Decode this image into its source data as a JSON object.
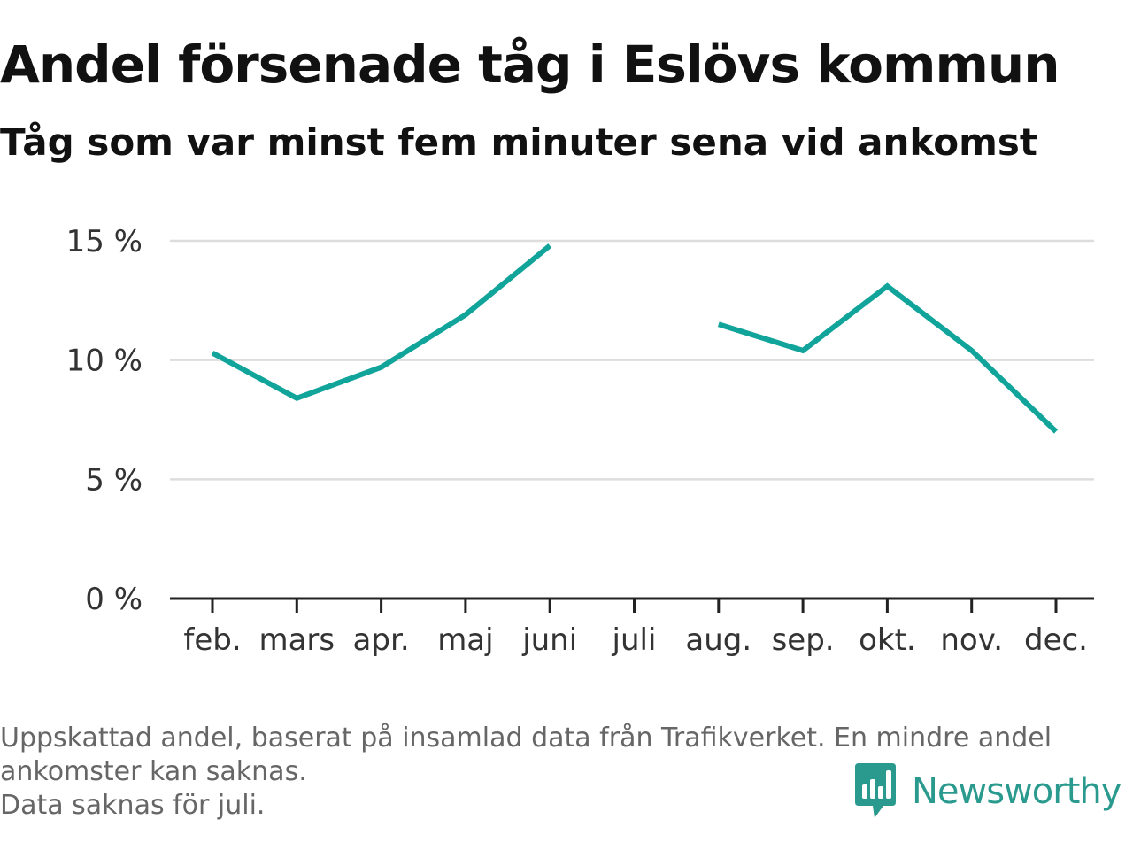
{
  "title": "Andel försenade tåg i Eslövs kommun",
  "subtitle": "Tåg som var minst fem minuter sena vid ankomst",
  "footnote": {
    "line1": "Uppskattad andel, baserat på insamlad data från Trafikverket. En mindre andel",
    "line2": "ankomster kan saknas.",
    "line3": "Data saknas för juli."
  },
  "brand": {
    "name": "Newsworthy",
    "icon": "newsworthy-logo-icon"
  },
  "colors": {
    "line": "#10a49a",
    "grid": "#dddddd",
    "axis": "#222222",
    "brand": "#2b9a8e"
  },
  "chart_data": {
    "type": "line",
    "title": "Andel försenade tåg i Eslövs kommun",
    "subtitle": "Tåg som var minst fem minuter sena vid ankomst",
    "categories": [
      "feb.",
      "mars",
      "apr.",
      "maj",
      "juni",
      "juli",
      "aug.",
      "sep.",
      "okt.",
      "nov.",
      "dec."
    ],
    "series": [
      {
        "values": [
          10.3,
          8.4,
          9.7,
          11.9,
          14.8,
          null,
          11.5,
          10.4,
          13.1,
          10.4,
          7.0
        ]
      }
    ],
    "yticks": [
      0,
      5,
      10,
      15
    ],
    "ytick_labels": [
      "0 %",
      "5 %",
      "10 %",
      "15 %"
    ],
    "ylim": [
      0,
      15
    ],
    "grid": true,
    "legend": "none"
  }
}
